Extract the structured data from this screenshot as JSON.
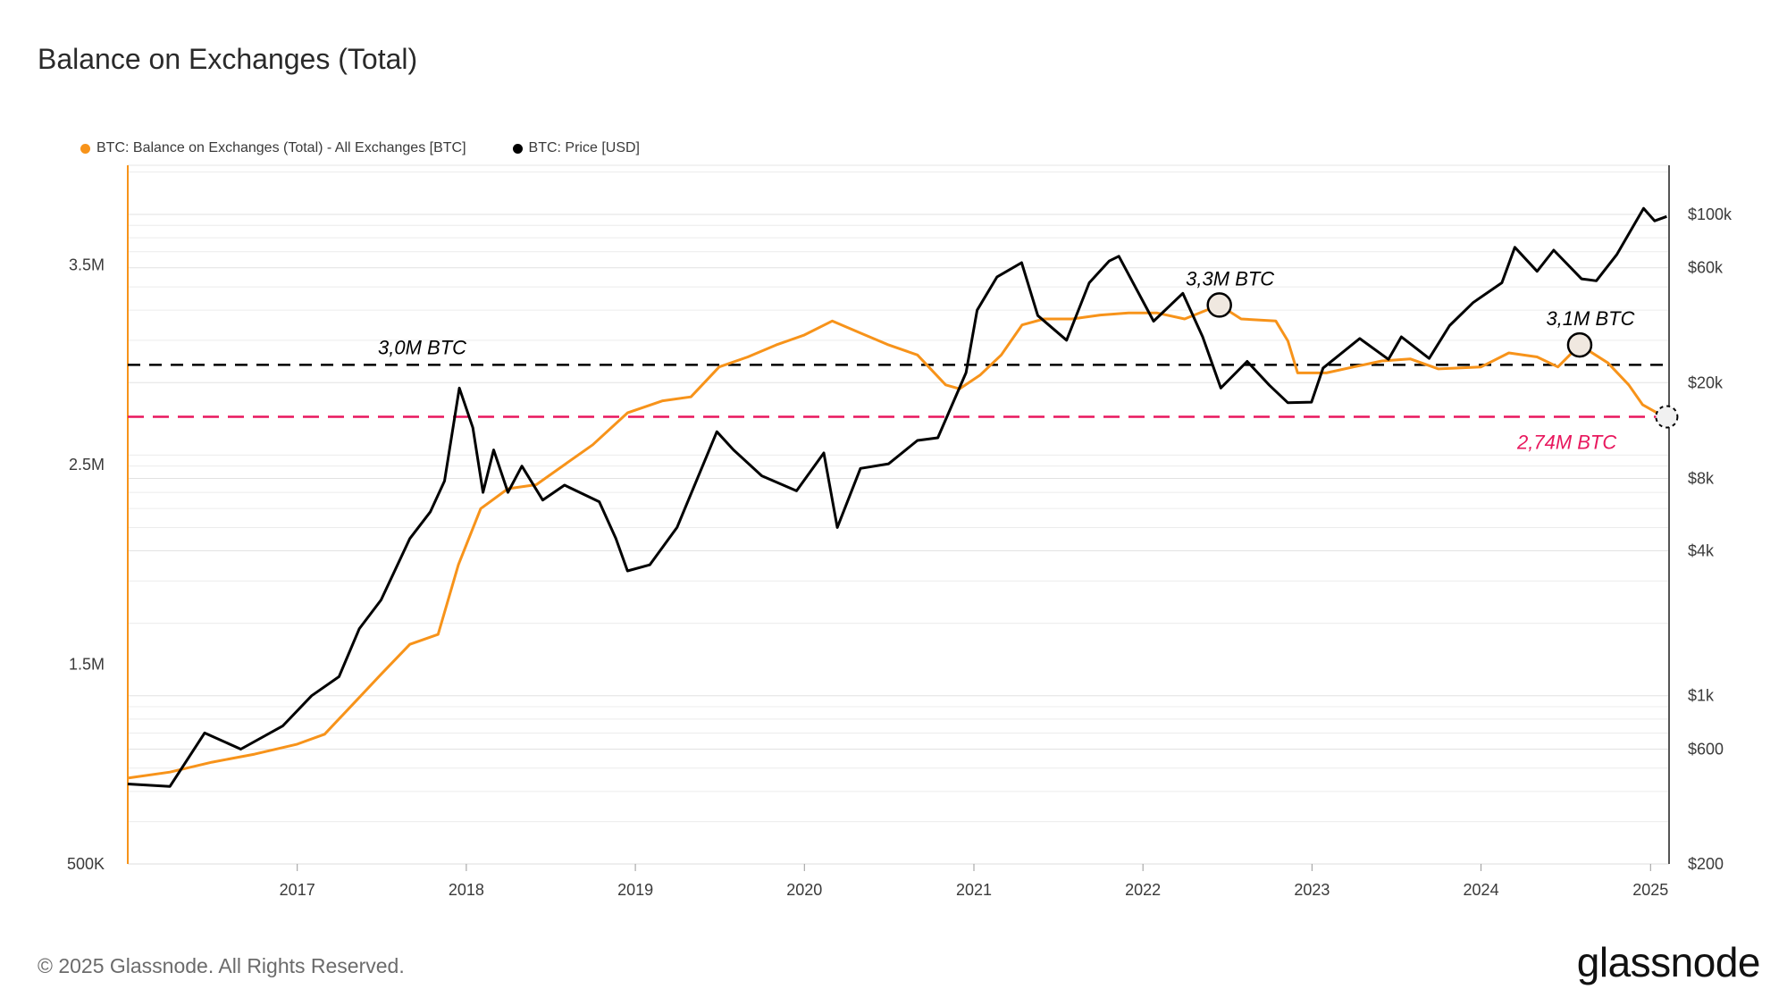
{
  "title": "Balance on Exchanges (Total)",
  "legend": {
    "balance": "BTC: Balance on Exchanges (Total) - All Exchanges [BTC]",
    "price": "BTC: Price [USD]"
  },
  "footer": "© 2025 Glassnode. All Rights Reserved.",
  "logo": "glassnode",
  "colors": {
    "balance": "#f7931a",
    "price": "#000000",
    "low_line": "#e8175d"
  },
  "chart_data": {
    "type": "line",
    "title": "Balance on Exchanges (Total)",
    "x_range": [
      "2016-01-01",
      "2025-02-10"
    ],
    "x_ticks": [
      "2017",
      "2018",
      "2019",
      "2020",
      "2021",
      "2022",
      "2023",
      "2024",
      "2025"
    ],
    "y_left": {
      "range": [
        500000,
        4000000
      ],
      "ticks": [
        500000,
        1500000,
        2500000,
        3500000
      ],
      "tick_labels": [
        "500K",
        "1.5M",
        "2.5M",
        "3.5M"
      ]
    },
    "y_right": {
      "scale": "log",
      "range": [
        200,
        160000
      ],
      "ticks": [
        200,
        600,
        1000,
        4000,
        8000,
        20000,
        60000,
        100000
      ],
      "tick_labels": [
        "$200",
        "$600",
        "$1k",
        "$4k",
        "$8k",
        "$20k",
        "$60k",
        "$100k"
      ]
    },
    "grid": true,
    "legend_position": "top-left",
    "series": [
      {
        "name": "BTC: Balance on Exchanges (Total) - All Exchanges [BTC]",
        "axis": "left",
        "points": [
          [
            "2016-01-01",
            930000
          ],
          [
            "2016-04-01",
            960000
          ],
          [
            "2016-07-01",
            1010000
          ],
          [
            "2016-10-01",
            1050000
          ],
          [
            "2017-01-01",
            1100000
          ],
          [
            "2017-03-01",
            1150000
          ],
          [
            "2017-05-01",
            1300000
          ],
          [
            "2017-07-01",
            1450000
          ],
          [
            "2017-09-01",
            1600000
          ],
          [
            "2017-11-01",
            1650000
          ],
          [
            "2017-12-15",
            2000000
          ],
          [
            "2018-02-01",
            2280000
          ],
          [
            "2018-04-01",
            2380000
          ],
          [
            "2018-06-01",
            2400000
          ],
          [
            "2018-08-01",
            2500000
          ],
          [
            "2018-10-01",
            2600000
          ],
          [
            "2018-12-15",
            2760000
          ],
          [
            "2019-03-01",
            2820000
          ],
          [
            "2019-05-01",
            2840000
          ],
          [
            "2019-07-01",
            2990000
          ],
          [
            "2019-09-01",
            3040000
          ],
          [
            "2019-11-01",
            3100000
          ],
          [
            "2020-01-01",
            3150000
          ],
          [
            "2020-03-01",
            3220000
          ],
          [
            "2020-05-01",
            3160000
          ],
          [
            "2020-07-01",
            3100000
          ],
          [
            "2020-09-01",
            3050000
          ],
          [
            "2020-11-01",
            2900000
          ],
          [
            "2020-12-01",
            2880000
          ],
          [
            "2021-01-15",
            2950000
          ],
          [
            "2021-03-01",
            3050000
          ],
          [
            "2021-04-15",
            3200000
          ],
          [
            "2021-06-01",
            3230000
          ],
          [
            "2021-08-01",
            3230000
          ],
          [
            "2021-10-01",
            3250000
          ],
          [
            "2021-12-01",
            3260000
          ],
          [
            "2022-02-01",
            3260000
          ],
          [
            "2022-04-01",
            3230000
          ],
          [
            "2022-06-15",
            3300000
          ],
          [
            "2022-08-01",
            3230000
          ],
          [
            "2022-10-15",
            3220000
          ],
          [
            "2022-11-10",
            3120000
          ],
          [
            "2022-12-01",
            2960000
          ],
          [
            "2023-02-01",
            2960000
          ],
          [
            "2023-04-01",
            2990000
          ],
          [
            "2023-06-01",
            3020000
          ],
          [
            "2023-08-01",
            3030000
          ],
          [
            "2023-10-01",
            2980000
          ],
          [
            "2024-01-01",
            2990000
          ],
          [
            "2024-03-01",
            3060000
          ],
          [
            "2024-05-01",
            3040000
          ],
          [
            "2024-06-15",
            2990000
          ],
          [
            "2024-08-01",
            3100000
          ],
          [
            "2024-10-01",
            3010000
          ],
          [
            "2024-11-15",
            2900000
          ],
          [
            "2024-12-15",
            2800000
          ],
          [
            "2025-01-15",
            2760000
          ],
          [
            "2025-02-05",
            2740000
          ]
        ]
      },
      {
        "name": "BTC: Price [USD]",
        "axis": "right",
        "points": [
          [
            "2016-01-01",
            430
          ],
          [
            "2016-04-01",
            420
          ],
          [
            "2016-06-15",
            700
          ],
          [
            "2016-09-01",
            600
          ],
          [
            "2016-12-01",
            750
          ],
          [
            "2017-02-01",
            1000
          ],
          [
            "2017-04-01",
            1200
          ],
          [
            "2017-05-15",
            1900
          ],
          [
            "2017-07-01",
            2500
          ],
          [
            "2017-09-01",
            4500
          ],
          [
            "2017-10-15",
            5800
          ],
          [
            "2017-11-15",
            7800
          ],
          [
            "2017-12-17",
            19000
          ],
          [
            "2018-01-15",
            13000
          ],
          [
            "2018-02-06",
            7000
          ],
          [
            "2018-03-01",
            10500
          ],
          [
            "2018-04-01",
            7000
          ],
          [
            "2018-05-01",
            9000
          ],
          [
            "2018-06-15",
            6500
          ],
          [
            "2018-08-01",
            7500
          ],
          [
            "2018-10-15",
            6400
          ],
          [
            "2018-11-20",
            4500
          ],
          [
            "2018-12-15",
            3300
          ],
          [
            "2019-02-01",
            3500
          ],
          [
            "2019-04-01",
            5000
          ],
          [
            "2019-06-26",
            12500
          ],
          [
            "2019-08-01",
            10500
          ],
          [
            "2019-10-01",
            8200
          ],
          [
            "2019-12-15",
            7100
          ],
          [
            "2020-02-12",
            10200
          ],
          [
            "2020-03-12",
            5000
          ],
          [
            "2020-05-01",
            8800
          ],
          [
            "2020-07-01",
            9200
          ],
          [
            "2020-09-01",
            11500
          ],
          [
            "2020-10-15",
            11800
          ],
          [
            "2020-12-15",
            22000
          ],
          [
            "2021-01-08",
            40000
          ],
          [
            "2021-02-20",
            55000
          ],
          [
            "2021-04-14",
            63000
          ],
          [
            "2021-05-19",
            38000
          ],
          [
            "2021-07-20",
            30000
          ],
          [
            "2021-09-07",
            52000
          ],
          [
            "2021-10-20",
            64000
          ],
          [
            "2021-11-10",
            67000
          ],
          [
            "2022-01-24",
            36000
          ],
          [
            "2022-03-28",
            47000
          ],
          [
            "2022-05-10",
            31000
          ],
          [
            "2022-06-18",
            19000
          ],
          [
            "2022-08-14",
            24500
          ],
          [
            "2022-10-01",
            19500
          ],
          [
            "2022-11-10",
            16500
          ],
          [
            "2022-12-31",
            16600
          ],
          [
            "2023-01-25",
            23000
          ],
          [
            "2023-04-14",
            30500
          ],
          [
            "2023-06-15",
            25000
          ],
          [
            "2023-07-13",
            31000
          ],
          [
            "2023-09-11",
            25200
          ],
          [
            "2023-10-25",
            34500
          ],
          [
            "2023-12-15",
            43000
          ],
          [
            "2024-02-15",
            52000
          ],
          [
            "2024-03-14",
            73000
          ],
          [
            "2024-05-01",
            58000
          ],
          [
            "2024-06-06",
            71000
          ],
          [
            "2024-08-05",
            54000
          ],
          [
            "2024-09-06",
            53000
          ],
          [
            "2024-10-20",
            68000
          ],
          [
            "2024-12-17",
            106000
          ],
          [
            "2025-01-10",
            94000
          ],
          [
            "2025-02-05",
            98000
          ]
        ]
      }
    ],
    "reference_lines": [
      {
        "value": 3000000,
        "axis": "left",
        "label": "3,0M BTC",
        "style": "dashed",
        "color": "#000000"
      },
      {
        "value": 2740000,
        "axis": "left",
        "label": "2,74M BTC",
        "style": "dashed",
        "color": "#e8175d"
      }
    ],
    "annotations": [
      {
        "x": "2022-06-15",
        "y": 3300000,
        "label": "3,3M BTC"
      },
      {
        "x": "2024-08-01",
        "y": 3100000,
        "label": "3,1M BTC"
      },
      {
        "x": "2025-02-05",
        "y": 2740000,
        "label": ""
      }
    ]
  }
}
